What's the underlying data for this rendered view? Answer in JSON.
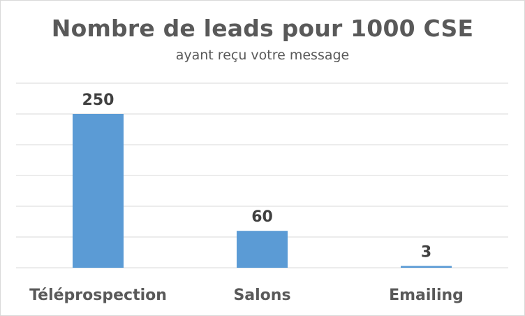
{
  "chart_data": {
    "type": "bar",
    "title": "Nombre de leads pour 1000 CSE",
    "subtitle": "ayant reçu votre message",
    "categories": [
      "Téléprospection",
      "Salons",
      "Emailing"
    ],
    "values": [
      250,
      60,
      3
    ],
    "data_labels": [
      "250",
      "60",
      "3"
    ],
    "xlabel": "",
    "ylabel": "",
    "ylim": [
      0,
      300
    ],
    "grid": true,
    "legend": "none",
    "bar_color": "#5b9bd5",
    "gridline_color": "#d9d9d9",
    "text_color": "#595959"
  }
}
